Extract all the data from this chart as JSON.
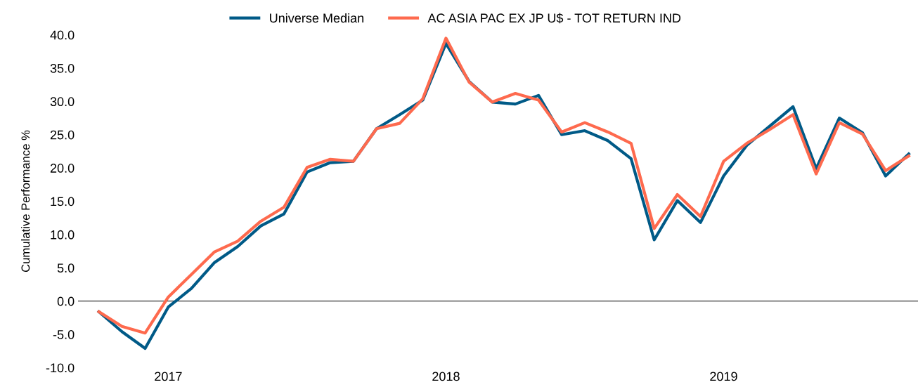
{
  "chart_data": {
    "type": "line",
    "ylabel": "Cumulative Performance %",
    "categories": [
      null,
      null,
      null,
      "2017",
      null,
      null,
      null,
      null,
      null,
      null,
      null,
      null,
      null,
      null,
      null,
      "2018",
      null,
      null,
      null,
      null,
      null,
      null,
      null,
      null,
      null,
      null,
      null,
      "2019",
      null,
      null,
      null,
      null,
      null,
      null,
      null,
      null
    ],
    "series": [
      {
        "name": "Universe Median",
        "color": "#005a87",
        "values": [
          -1.6,
          -4.6,
          -7.1,
          -0.9,
          1.9,
          5.8,
          8.2,
          11.3,
          13.1,
          19.4,
          20.8,
          21.0,
          25.9,
          28.0,
          30.2,
          38.7,
          33.0,
          29.9,
          29.6,
          30.9,
          25.0,
          25.6,
          24.1,
          21.4,
          9.2,
          15.1,
          11.8,
          18.8,
          23.4,
          26.3,
          29.2,
          19.9,
          27.5,
          25.3,
          18.8,
          22.1
        ]
      },
      {
        "name": "AC ASIA PAC EX JP U$ - TOT RETURN IND",
        "color": "#fe6a4e",
        "values": [
          -1.6,
          -3.8,
          -4.8,
          0.6,
          4.0,
          7.4,
          9.0,
          12.0,
          14.1,
          20.1,
          21.3,
          21.0,
          25.9,
          26.7,
          30.4,
          39.5,
          32.9,
          29.9,
          31.2,
          30.2,
          25.4,
          26.8,
          25.4,
          23.7,
          10.9,
          16.0,
          12.7,
          21.0,
          23.7,
          25.8,
          28.0,
          19.1,
          26.8,
          25.1,
          19.6,
          21.8
        ]
      }
    ],
    "ylim": [
      -10,
      40
    ],
    "yticks": [
      {
        "value": -10,
        "label": "-10.0"
      },
      {
        "value": -5,
        "label": "-5.0"
      },
      {
        "value": 0,
        "label": "0.0"
      },
      {
        "value": 5,
        "label": "5.0"
      },
      {
        "value": 10,
        "label": "10.0"
      },
      {
        "value": 15,
        "label": "15.0"
      },
      {
        "value": 20,
        "label": "20.0"
      },
      {
        "value": 25,
        "label": "25.0"
      },
      {
        "value": 30,
        "label": "30.0"
      },
      {
        "value": 35,
        "label": "35.0"
      },
      {
        "value": 40,
        "label": "40.0"
      }
    ],
    "ref_lines": [
      {
        "axis": "y",
        "value": 0,
        "color": "#333333"
      }
    ],
    "legend": "top",
    "grid": false
  }
}
